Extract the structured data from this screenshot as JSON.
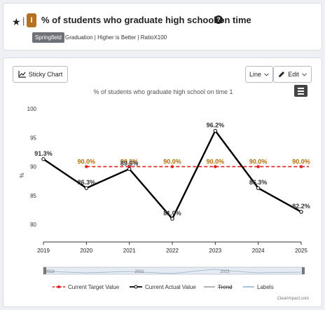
{
  "header": {
    "title": "% of students who graduate high school on time",
    "badge": "I",
    "tag": "Springfield",
    "subtitle": "Graduation | Higher is Better | RatioX100",
    "help": "?"
  },
  "toolbar": {
    "sticky_label": "Sticky Chart",
    "line_label": "Line",
    "edit_label": "Edit"
  },
  "colors": {
    "target": "#e02020",
    "actual": "#000000",
    "badge": "#b7701f",
    "label_target": "#b36a00"
  },
  "chart_data": {
    "type": "line",
    "title": "% of students who graduate high school on time 1",
    "ylabel": "%",
    "xlabel": "",
    "x": [
      "2019",
      "2020",
      "2021",
      "2022",
      "2023",
      "2024",
      "2025"
    ],
    "yticks": [
      80,
      85,
      90,
      95,
      100
    ],
    "ylim": [
      77,
      100
    ],
    "series": [
      {
        "name": "Current Target Value",
        "values": [
          null,
          90.0,
          90.0,
          90.0,
          90.0,
          90.0,
          90.0
        ],
        "labels": [
          "",
          "90.0%",
          "90.0%",
          "90.0%",
          "90.0%",
          "90.0%",
          "90.0%"
        ]
      },
      {
        "name": "Current Actual Value",
        "values": [
          91.3,
          86.3,
          89.6,
          81.0,
          96.2,
          86.3,
          82.2
        ],
        "labels": [
          "91.3%",
          "86.3%",
          "89.6%",
          "81.0%",
          "96.2%",
          "86.3%",
          "82.2%"
        ]
      }
    ],
    "legend": [
      "Current Target Value",
      "Current Actual Value",
      "Trend",
      "Labels"
    ],
    "navigator": [
      "2019",
      "2021",
      "2023"
    ],
    "credit": "ClearImpact.com",
    "grid": false
  }
}
